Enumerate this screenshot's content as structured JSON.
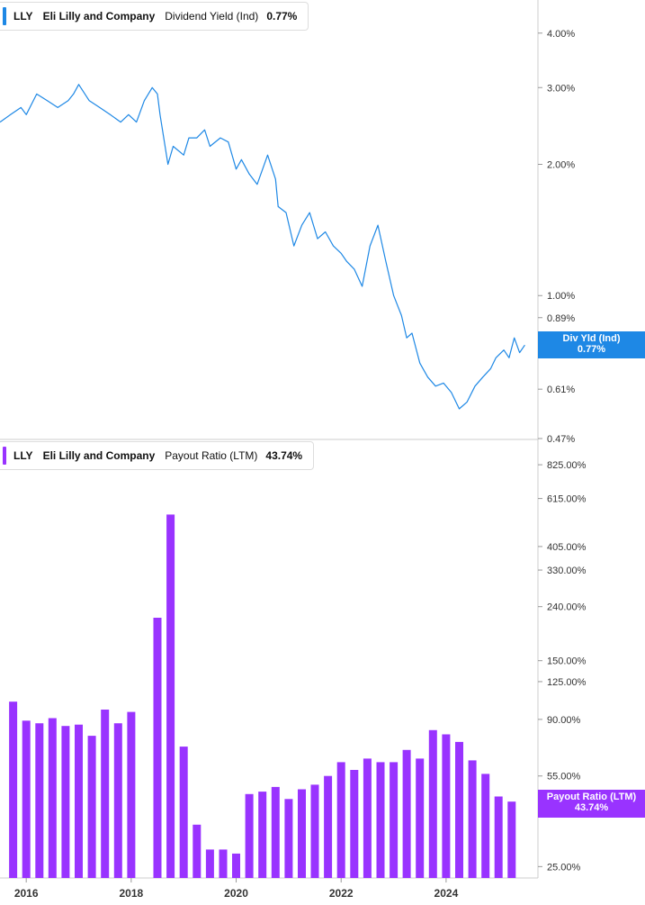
{
  "colors": {
    "yield_line": "#1e88e5",
    "payout_bar": "#9933ff",
    "grid_divider": "#cccccc"
  },
  "top_legend": {
    "ticker": "LLY",
    "company": "Eli Lilly and Company",
    "metric": "Dividend Yield (Ind)",
    "value": "0.77%"
  },
  "bottom_legend": {
    "ticker": "LLY",
    "company": "Eli Lilly and Company",
    "metric": "Payout Ratio (LTM)",
    "value": "43.74%"
  },
  "top_flag": {
    "label": "Div Yld (Ind)",
    "value": "0.77%"
  },
  "bottom_flag": {
    "label": "Payout Ratio (LTM)",
    "value": "43.74%"
  },
  "chart_data": [
    {
      "type": "line",
      "scale": "log",
      "series": [
        {
          "name": "Dividend Yield (Ind)",
          "x": [
            2015.5,
            2015.7,
            2015.9,
            2016.0,
            2016.2,
            2016.4,
            2016.6,
            2016.8,
            2016.9,
            2017.0,
            2017.2,
            2017.4,
            2017.6,
            2017.8,
            2017.95,
            2018.1,
            2018.25,
            2018.4,
            2018.5,
            2018.55,
            2018.7,
            2018.8,
            2019.0,
            2019.1,
            2019.25,
            2019.4,
            2019.5,
            2019.7,
            2019.85,
            2020.0,
            2020.1,
            2020.25,
            2020.4,
            2020.6,
            2020.75,
            2020.8,
            2020.95,
            2021.1,
            2021.25,
            2021.4,
            2021.55,
            2021.7,
            2021.85,
            2022.0,
            2022.1,
            2022.25,
            2022.4,
            2022.55,
            2022.7,
            2022.85,
            2023.0,
            2023.15,
            2023.25,
            2023.35,
            2023.5,
            2023.65,
            2023.8,
            2023.95,
            2024.1,
            2024.25,
            2024.4,
            2024.55,
            2024.7,
            2024.85,
            2024.95,
            2025.1,
            2025.2,
            2025.3,
            2025.4,
            2025.5
          ],
          "values": [
            2.5,
            2.6,
            2.7,
            2.6,
            2.9,
            2.8,
            2.7,
            2.8,
            2.9,
            3.05,
            2.8,
            2.7,
            2.6,
            2.5,
            2.6,
            2.5,
            2.8,
            3.0,
            2.9,
            2.6,
            2.0,
            2.2,
            2.1,
            2.3,
            2.3,
            2.4,
            2.2,
            2.3,
            2.25,
            1.95,
            2.05,
            1.9,
            1.8,
            2.1,
            1.85,
            1.6,
            1.55,
            1.3,
            1.45,
            1.55,
            1.35,
            1.4,
            1.3,
            1.25,
            1.2,
            1.15,
            1.05,
            1.3,
            1.45,
            1.2,
            1.0,
            0.9,
            0.8,
            0.82,
            0.7,
            0.65,
            0.62,
            0.63,
            0.6,
            0.55,
            0.57,
            0.62,
            0.65,
            0.68,
            0.72,
            0.75,
            0.72,
            0.8,
            0.74,
            0.77
          ]
        }
      ],
      "y_ticks": [
        "4.00%",
        "3.00%",
        "2.00%",
        "1.00%",
        "0.89%",
        "0.61%",
        "0.47%"
      ],
      "ylim": [
        0.47,
        4.5
      ],
      "grid": false
    },
    {
      "type": "bar",
      "scale": "log",
      "series": [
        {
          "name": "Payout Ratio (LTM)",
          "x": [
            2015.75,
            2016.0,
            2016.25,
            2016.5,
            2016.75,
            2017.0,
            2017.25,
            2017.5,
            2017.75,
            2018.0,
            2018.25,
            2018.5,
            2018.75,
            2019.0,
            2019.25,
            2019.5,
            2019.75,
            2020.0,
            2020.25,
            2020.5,
            2020.75,
            2021.0,
            2021.25,
            2021.5,
            2021.75,
            2022.0,
            2022.25,
            2022.5,
            2022.75,
            2023.0,
            2023.25,
            2023.5,
            2023.75,
            2024.0,
            2024.25,
            2024.5,
            2024.75,
            2025.0,
            2025.25
          ],
          "values": [
            105,
            89,
            87,
            91,
            85,
            86,
            78,
            98,
            87,
            96,
            0,
            218,
            535,
            71,
            36,
            29,
            29,
            28,
            47,
            48,
            50,
            45,
            49,
            51,
            55,
            62,
            58,
            64,
            62,
            62,
            69,
            64,
            82,
            79,
            74,
            63,
            56,
            46,
            44
          ]
        }
      ],
      "y_ticks": [
        "825.00%",
        "615.00%",
        "405.00%",
        "330.00%",
        "240.00%",
        "150.00%",
        "125.00%",
        "90.00%",
        "55.00%",
        "25.00%"
      ],
      "ylim": [
        23,
        900
      ],
      "grid": false
    }
  ],
  "x_axis": {
    "range": [
      2015.5,
      2025.75
    ],
    "tick_labels": [
      "2016",
      "2018",
      "2020",
      "2022",
      "2024"
    ],
    "tick_values": [
      2016,
      2018,
      2020,
      2022,
      2024
    ]
  }
}
